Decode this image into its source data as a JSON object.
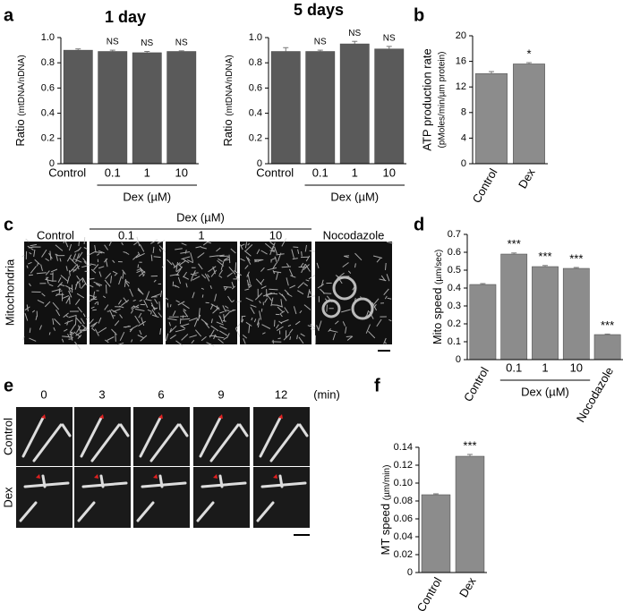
{
  "panel_labels": [
    "a",
    "b",
    "c",
    "d",
    "e",
    "f"
  ],
  "chart_data": [
    {
      "type": "bar",
      "title": "1 day",
      "ylabel": "Ratio",
      "ylabel_unit": "(mtDNA/nDNA)",
      "categories": [
        "Control",
        "0.1",
        "1",
        "10"
      ],
      "values": [
        0.9,
        0.89,
        0.88,
        0.89
      ],
      "errors": [
        0.01,
        0.01,
        0.01,
        0.005
      ],
      "annotations": [
        null,
        "NS",
        "NS",
        "NS"
      ],
      "group_label": "Dex (µM)",
      "ylim": [
        0,
        1
      ],
      "yticks": [
        0,
        0.2,
        0.4,
        0.6,
        0.8,
        {
          "value": 1,
          "label": "1.0"
        }
      ],
      "color": "#5a5a5a"
    },
    {
      "type": "bar",
      "title": "5 days",
      "ylabel": "Ratio",
      "ylabel_unit": "(mtDNA/nDNA)",
      "categories": [
        "Control",
        "0.1",
        "1",
        "10"
      ],
      "values": [
        0.89,
        0.89,
        0.95,
        0.91
      ],
      "errors": [
        0.03,
        0.01,
        0.02,
        0.02
      ],
      "annotations": [
        null,
        "NS",
        "NS",
        "NS"
      ],
      "group_label": "Dex (µM)",
      "ylim": [
        0,
        1
      ],
      "yticks": [
        0,
        0.2,
        0.4,
        0.6,
        0.8,
        {
          "value": 1,
          "label": "1.0"
        }
      ],
      "color": "#5a5a5a"
    },
    {
      "type": "bar",
      "ylabel": "ATP production rate",
      "ylabel_unit": "(pMoles/min/µm protein)",
      "categories": [
        "Control",
        "Dex"
      ],
      "values": [
        14.1,
        15.6
      ],
      "errors": [
        0.3,
        0.2
      ],
      "annotations": [
        null,
        "*"
      ],
      "ylim": [
        0,
        20
      ],
      "yticks": [
        0,
        4,
        8,
        12,
        16,
        20
      ],
      "color": "#8c8c8c"
    },
    {
      "type": "bar",
      "ylabel": "Mito speed",
      "ylabel_unit": "(µm/sec)",
      "categories": [
        "Control",
        "0.1",
        "1",
        "10",
        "Nocodazole"
      ],
      "values": [
        0.42,
        0.59,
        0.52,
        0.51,
        0.14
      ],
      "errors": [
        0.005,
        0.006,
        0.006,
        0.005,
        0.003
      ],
      "annotations": [
        null,
        "***",
        "***",
        "***",
        "***"
      ],
      "group_label": "Dex (µM)",
      "ylim": [
        0,
        0.7
      ],
      "yticks": [
        0,
        0.1,
        0.2,
        0.3,
        0.4,
        0.5,
        0.6,
        0.7
      ],
      "color": "#8c8c8c"
    },
    {
      "type": "bar",
      "ylabel": "MT speed",
      "ylabel_unit": "(µm/min)",
      "categories": [
        "Control",
        "Dex"
      ],
      "values": [
        0.087,
        0.13
      ],
      "errors": [
        0.001,
        0.002
      ],
      "annotations": [
        null,
        "***"
      ],
      "ylim": [
        0,
        0.14
      ],
      "yticks": [
        0,
        0.02,
        0.04,
        0.06,
        0.08,
        {
          "value": 0.1,
          "label": "0.10"
        },
        0.12,
        0.14
      ],
      "color": "#8c8c8c"
    }
  ],
  "images_c": {
    "row_label": "Mitochondria",
    "group_label": "Dex (µM)",
    "columns": [
      "Control",
      "0.1",
      "1",
      "10",
      "Nocodazole"
    ]
  },
  "images_e": {
    "columns": [
      "0",
      "3",
      "6",
      "9",
      "12"
    ],
    "unit": "(min)",
    "rows": [
      "Control",
      "Dex"
    ]
  }
}
